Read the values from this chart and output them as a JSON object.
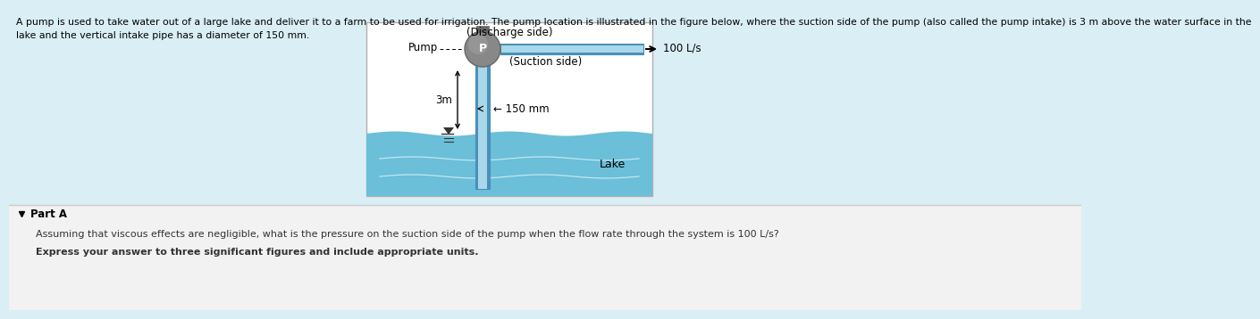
{
  "bg_color_top": "#daeef5",
  "bg_color_bottom": "#f2f2f2",
  "diagram_bg": "#ffffff",
  "lake_color": "#6bbfd8",
  "lake_color2": "#82cce0",
  "pipe_color_light": "#a8d8ea",
  "pipe_color_mid": "#7bbdd4",
  "pipe_color_dark": "#4a90b8",
  "pump_body_color": "#888888",
  "pump_dark": "#666666",
  "pump_light": "#aaaaaa",
  "discharge_pipe_color": "#a8d8ea",
  "text_color": "#000000",
  "text_dark": "#333333",
  "red_text_color": "#cc0000",
  "title_text_line1": "A pump is used to take water out of a large lake and deliver it to a farm to be used for irrigation. The pump location is illustrated in the figure below, where the suction side of the pump (also called the pump intake) is 3 m above the water surface in the",
  "title_text_line2": "lake and the vertical intake pipe has a diameter of 150 mm.",
  "discharge_label": "(Discharge side)",
  "pump_label": "Pump",
  "p_label": "P",
  "flow_label": "→ 100 L/s",
  "suction_label": "(Suction side)",
  "height_label": "3m",
  "diameter_label": "← 150 mm",
  "lake_label": "Lake",
  "part_a_label": "Part A",
  "question_text": "Assuming that viscous effects are negligible, what is the pressure on the suction side of the pump when the flow rate through the system is 100 L/s?",
  "instruction_text": "Express your answer to three significant figures and include appropriate units.",
  "divider_color": "#cccccc",
  "border_color": "#b0b0b0"
}
